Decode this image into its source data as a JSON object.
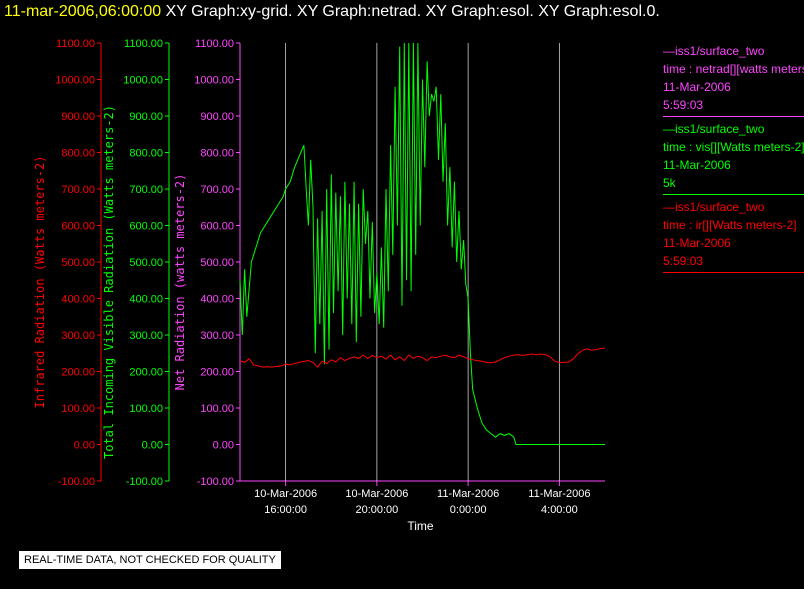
{
  "header": {
    "datetime": "11-mar-2006,06:00:00",
    "items": "XY Graph:xy-grid.  XY Graph:netrad.  XY Graph:esol.  XY Graph:esol.0."
  },
  "legend": [
    {
      "series": "—iss1/surface_two",
      "field": "time : netrad[][watts meters-2]",
      "date": "11-Mar-2006",
      "value": "5:59:03",
      "color": "#ff44ff"
    },
    {
      "series": "—iss1/surface_two",
      "field": "time : vis[][Watts meters-2]",
      "date": "11-Mar-2006",
      "value": "5k",
      "color": "#00ff00"
    },
    {
      "series": "—iss1/surface_two",
      "field": "time : ir[][Watts meters-2]",
      "date": "11-Mar-2006",
      "value": "5:59:03",
      "color": "#ff0000"
    }
  ],
  "disclaimer": "REAL-TIME DATA, NOT CHECKED FOR QUALITY",
  "chart_data": {
    "type": "line",
    "xlabel": "Time",
    "x_ticks": [
      {
        "t": 16,
        "line1": "10-Mar-2006",
        "line2": "16:00:00"
      },
      {
        "t": 20,
        "line1": "10-Mar-2006",
        "line2": "20:00:00"
      },
      {
        "t": 24,
        "line1": "11-Mar-2006",
        "line2": "0:00:00"
      },
      {
        "t": 28,
        "line1": "11-Mar-2006",
        "line2": "4:00:00"
      }
    ],
    "xlim": [
      "10-Mar-2006 14:00",
      "11-Mar-2006 06:00"
    ],
    "grid": "vertical lines at labeled times",
    "ylim": [
      -100,
      1100
    ],
    "y_ticks": [
      "-100.00",
      "0.00",
      "100.00",
      "200.00",
      "300.00",
      "400.00",
      "500.00",
      "600.00",
      "700.00",
      "800.00",
      "900.00",
      "1000.00",
      "1100.00"
    ],
    "axes": [
      {
        "label": "Infrared Radiation (Watts meters-2)",
        "color": "#ff0000"
      },
      {
        "label": "Total Incoming Visible Radiation (Watts meters-2)",
        "color": "#00ff00"
      },
      {
        "label": "Net Radiation (watts meters-2)",
        "color": "#ff44ff"
      }
    ],
    "series": [
      {
        "name": "time : vis[][Watts meters-2]",
        "color": "#00ff00",
        "points": [
          [
            14.0,
            450
          ],
          [
            14.1,
            300
          ],
          [
            14.2,
            480
          ],
          [
            14.3,
            350
          ],
          [
            14.5,
            500
          ],
          [
            14.7,
            540
          ],
          [
            14.9,
            580
          ],
          [
            15.1,
            600
          ],
          [
            15.3,
            620
          ],
          [
            15.5,
            640
          ],
          [
            15.7,
            660
          ],
          [
            15.9,
            680
          ],
          [
            16.0,
            700
          ],
          [
            16.2,
            720
          ],
          [
            16.4,
            760
          ],
          [
            16.6,
            790
          ],
          [
            16.8,
            820
          ],
          [
            16.9,
            700
          ],
          [
            17.0,
            600
          ],
          [
            17.1,
            780
          ],
          [
            17.2,
            650
          ],
          [
            17.3,
            250
          ],
          [
            17.4,
            620
          ],
          [
            17.5,
            330
          ],
          [
            17.6,
            640
          ],
          [
            17.7,
            220
          ],
          [
            17.8,
            700
          ],
          [
            17.9,
            260
          ],
          [
            18.0,
            740
          ],
          [
            18.1,
            360
          ],
          [
            18.2,
            690
          ],
          [
            18.3,
            420
          ],
          [
            18.4,
            680
          ],
          [
            18.5,
            300
          ],
          [
            18.6,
            720
          ],
          [
            18.7,
            400
          ],
          [
            18.8,
            660
          ],
          [
            18.9,
            330
          ],
          [
            19.0,
            720
          ],
          [
            19.1,
            280
          ],
          [
            19.2,
            660
          ],
          [
            19.3,
            350
          ],
          [
            19.4,
            700
          ],
          [
            19.5,
            550
          ],
          [
            19.6,
            640
          ],
          [
            19.7,
            400
          ],
          [
            19.8,
            610
          ],
          [
            19.9,
            360
          ],
          [
            20.0,
            470
          ],
          [
            20.1,
            330
          ],
          [
            20.2,
            540
          ],
          [
            20.3,
            320
          ],
          [
            20.4,
            700
          ],
          [
            20.5,
            420
          ],
          [
            20.6,
            820
          ],
          [
            20.7,
            520
          ],
          [
            20.8,
            980
          ],
          [
            20.9,
            600
          ],
          [
            21.0,
            1090
          ],
          [
            21.1,
            380
          ],
          [
            21.2,
            1100
          ],
          [
            21.3,
            450
          ],
          [
            21.4,
            1100
          ],
          [
            21.5,
            420
          ],
          [
            21.6,
            1100
          ],
          [
            21.7,
            520
          ],
          [
            21.8,
            1100
          ],
          [
            21.9,
            600
          ],
          [
            22.0,
            1000
          ],
          [
            22.1,
            760
          ],
          [
            22.2,
            1050
          ],
          [
            22.3,
            900
          ],
          [
            22.4,
            960
          ],
          [
            22.5,
            940
          ],
          [
            22.6,
            980
          ],
          [
            22.7,
            780
          ],
          [
            22.8,
            960
          ],
          [
            22.9,
            720
          ],
          [
            23.0,
            880
          ],
          [
            23.1,
            600
          ],
          [
            23.2,
            760
          ],
          [
            23.3,
            540
          ],
          [
            23.4,
            720
          ],
          [
            23.5,
            500
          ],
          [
            23.6,
            640
          ],
          [
            23.7,
            480
          ],
          [
            23.8,
            560
          ],
          [
            23.9,
            440
          ],
          [
            24.0,
            400
          ],
          [
            24.1,
            250
          ],
          [
            24.2,
            150
          ],
          [
            24.4,
            100
          ],
          [
            24.6,
            60
          ],
          [
            24.8,
            40
          ],
          [
            25.0,
            30
          ],
          [
            25.2,
            20
          ],
          [
            25.4,
            30
          ],
          [
            25.6,
            25
          ],
          [
            25.8,
            30
          ],
          [
            26.0,
            20
          ],
          [
            26.1,
            0
          ],
          [
            26.5,
            0
          ],
          [
            27.0,
            0
          ],
          [
            27.5,
            0
          ],
          [
            28.0,
            0
          ],
          [
            28.5,
            0
          ],
          [
            29.0,
            0
          ],
          [
            29.5,
            0
          ],
          [
            30.0,
            0
          ]
        ]
      },
      {
        "name": "time : ir[][Watts meters-2]",
        "color": "#ff0000",
        "points": [
          [
            14.0,
            230
          ],
          [
            14.2,
            225
          ],
          [
            14.4,
            235
          ],
          [
            14.6,
            218
          ],
          [
            14.8,
            215
          ],
          [
            15.0,
            212
          ],
          [
            15.2,
            213
          ],
          [
            15.4,
            212
          ],
          [
            15.6,
            214
          ],
          [
            15.8,
            215
          ],
          [
            16.0,
            220
          ],
          [
            16.2,
            218
          ],
          [
            16.4,
            222
          ],
          [
            16.6,
            225
          ],
          [
            16.8,
            228
          ],
          [
            17.0,
            230
          ],
          [
            17.2,
            225
          ],
          [
            17.4,
            212
          ],
          [
            17.6,
            228
          ],
          [
            17.8,
            222
          ],
          [
            18.0,
            232
          ],
          [
            18.2,
            226
          ],
          [
            18.4,
            238
          ],
          [
            18.6,
            230
          ],
          [
            18.8,
            236
          ],
          [
            19.0,
            240
          ],
          [
            19.2,
            236
          ],
          [
            19.4,
            245
          ],
          [
            19.6,
            236
          ],
          [
            19.8,
            244
          ],
          [
            20.0,
            238
          ],
          [
            20.2,
            242
          ],
          [
            20.4,
            234
          ],
          [
            20.6,
            245
          ],
          [
            20.8,
            232
          ],
          [
            21.0,
            240
          ],
          [
            21.2,
            230
          ],
          [
            21.4,
            245
          ],
          [
            21.6,
            236
          ],
          [
            21.8,
            242
          ],
          [
            22.0,
            238
          ],
          [
            22.2,
            230
          ],
          [
            22.4,
            240
          ],
          [
            22.6,
            238
          ],
          [
            22.8,
            242
          ],
          [
            23.0,
            245
          ],
          [
            23.2,
            240
          ],
          [
            23.4,
            238
          ],
          [
            23.6,
            245
          ],
          [
            23.8,
            240
          ],
          [
            24.0,
            235
          ],
          [
            24.2,
            232
          ],
          [
            24.4,
            230
          ],
          [
            24.6,
            228
          ],
          [
            24.8,
            225
          ],
          [
            25.0,
            224
          ],
          [
            25.2,
            226
          ],
          [
            25.4,
            232
          ],
          [
            25.6,
            238
          ],
          [
            25.8,
            242
          ],
          [
            26.0,
            245
          ],
          [
            26.2,
            246
          ],
          [
            26.4,
            244
          ],
          [
            26.6,
            246
          ],
          [
            26.8,
            248
          ],
          [
            27.0,
            246
          ],
          [
            27.2,
            248
          ],
          [
            27.4,
            246
          ],
          [
            27.6,
            240
          ],
          [
            27.8,
            228
          ],
          [
            28.0,
            225
          ],
          [
            28.2,
            225
          ],
          [
            28.4,
            226
          ],
          [
            28.6,
            234
          ],
          [
            28.8,
            248
          ],
          [
            29.0,
            258
          ],
          [
            29.2,
            262
          ],
          [
            29.4,
            258
          ],
          [
            29.6,
            260
          ],
          [
            29.8,
            263
          ],
          [
            30.0,
            264
          ]
        ]
      }
    ]
  }
}
